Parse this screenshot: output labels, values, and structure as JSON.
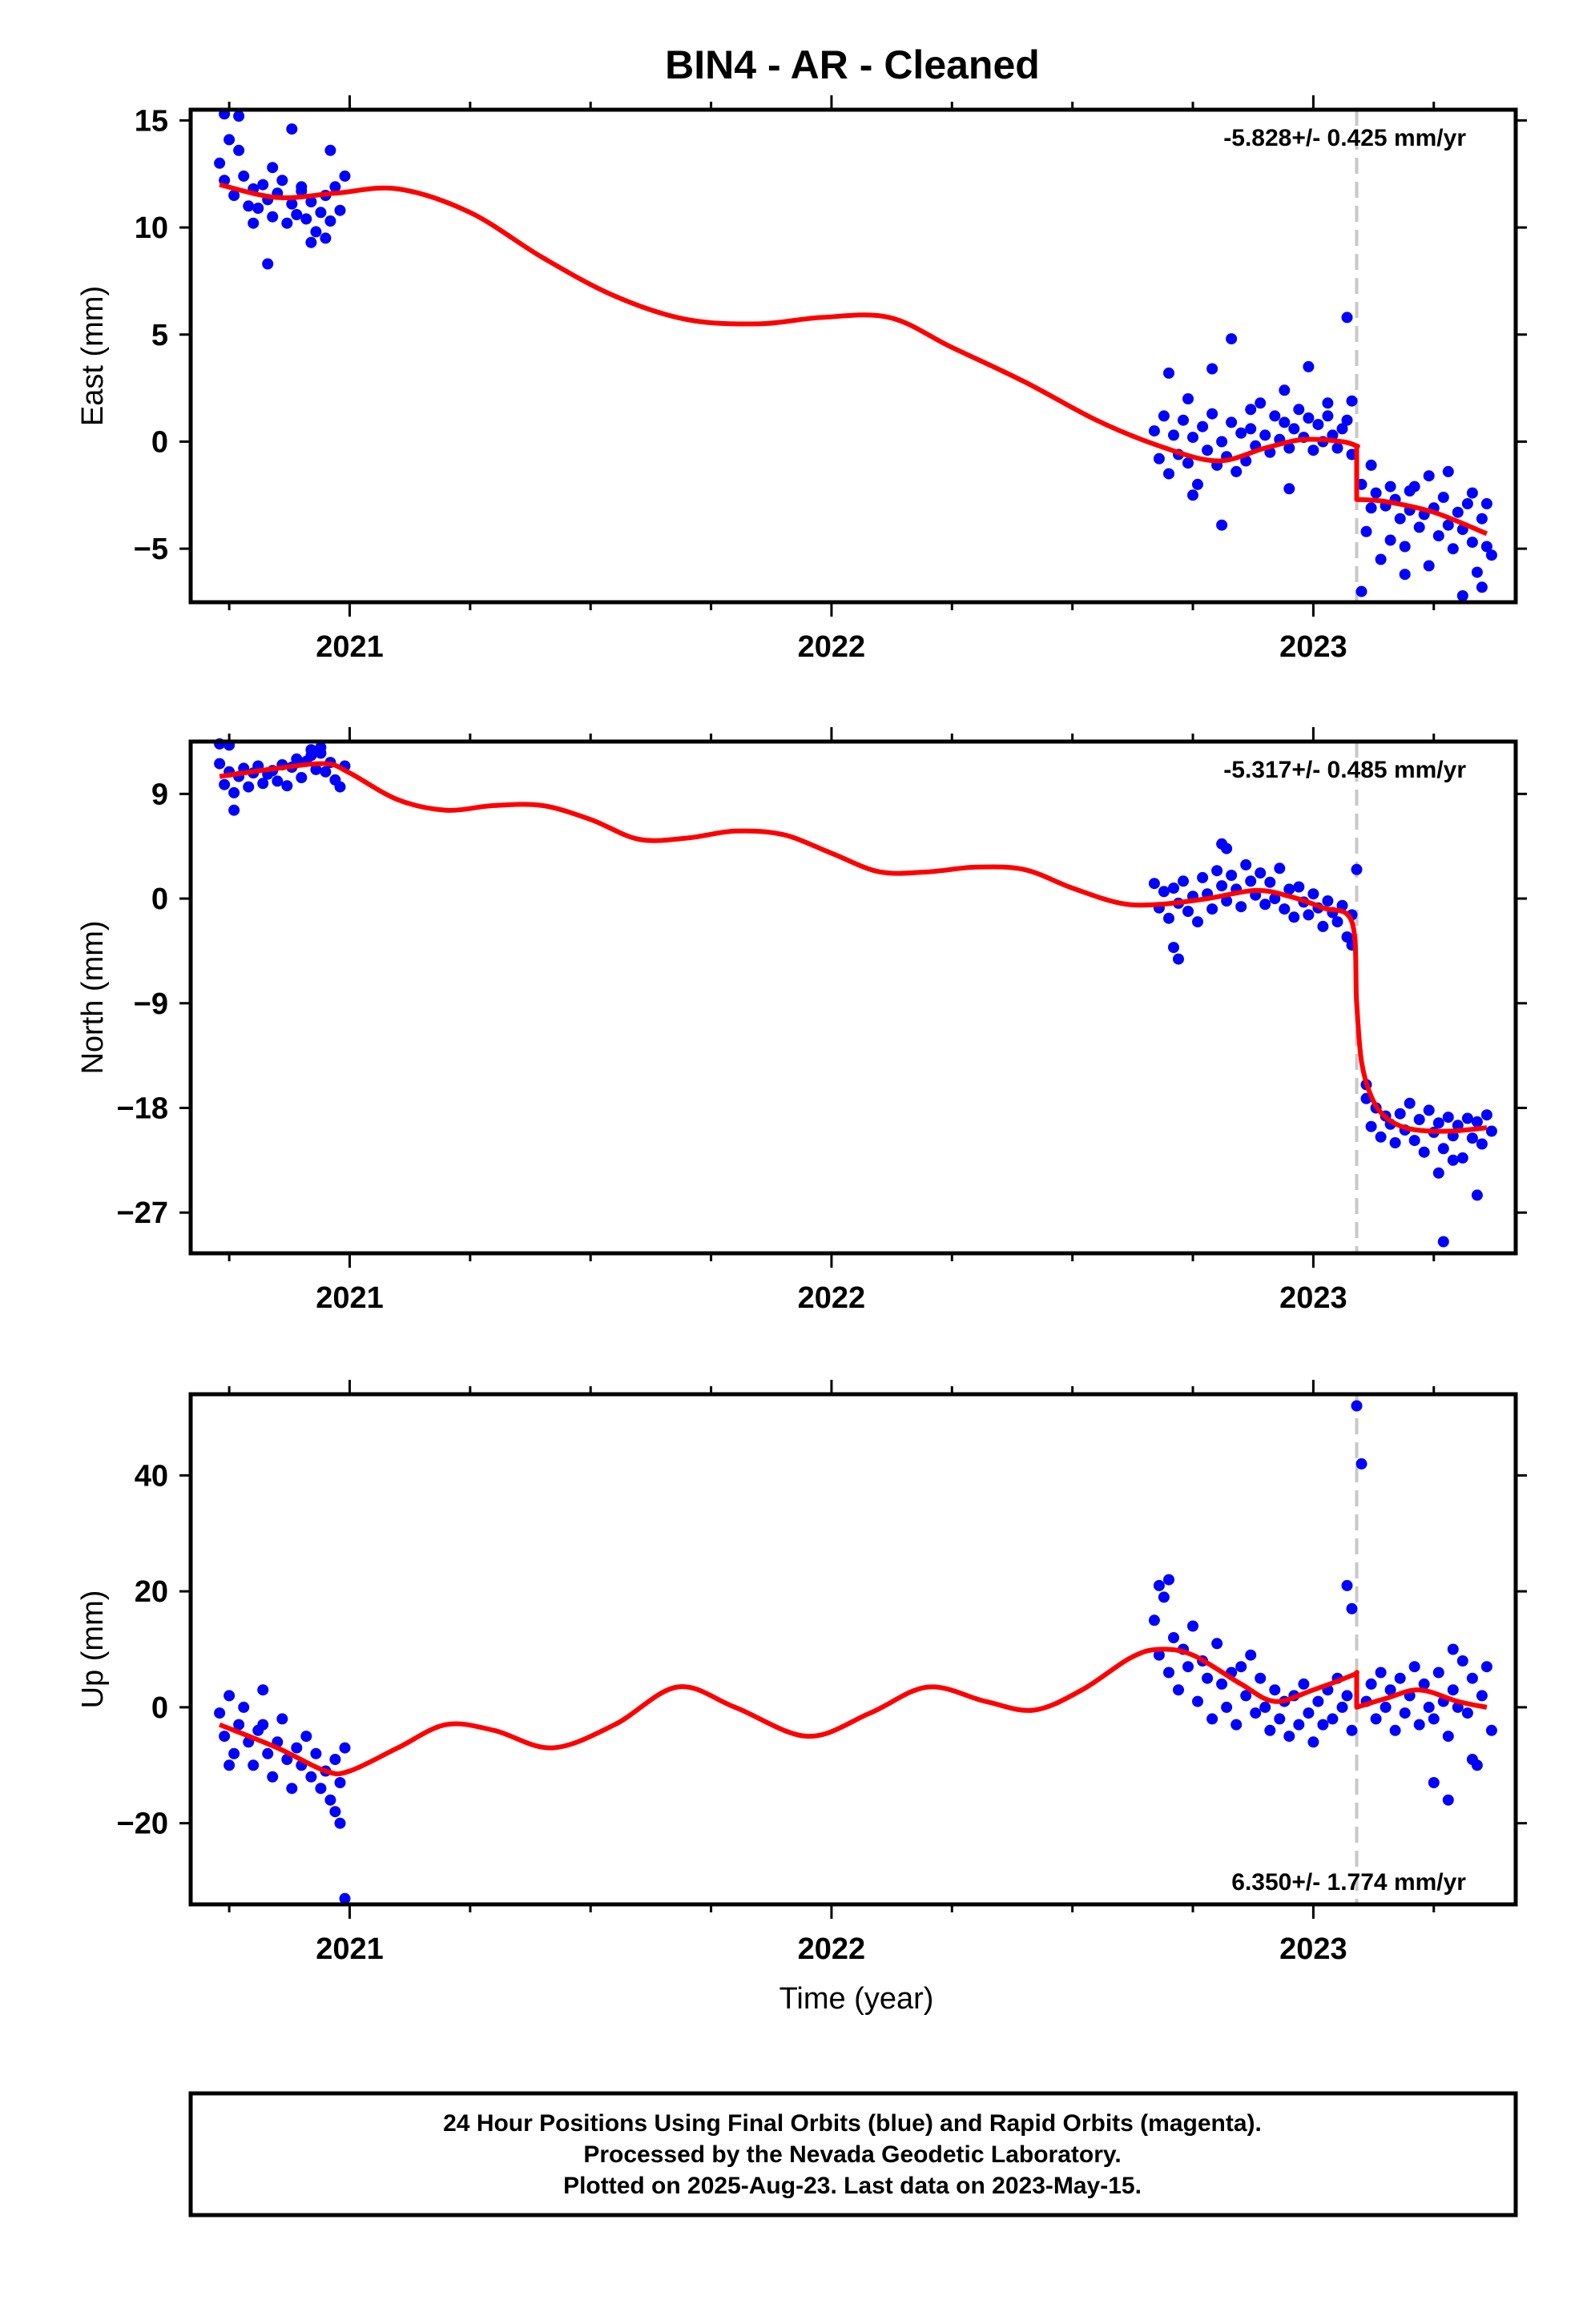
{
  "page": {
    "title": "BIN4  - AR - Cleaned"
  },
  "chart_data": [
    {
      "type": "scatter",
      "ylabel": "East (mm)",
      "xlim": [
        2020.67,
        2023.42
      ],
      "ylim": [
        -7.5,
        15.5
      ],
      "yticks": [
        -5,
        0,
        5,
        10,
        15
      ],
      "yticks_labels": [
        "−5",
        "0",
        "5",
        "10",
        "15"
      ],
      "xticks_labels": [
        "2021",
        "2022",
        "2023"
      ],
      "xticks": [
        2021,
        2022,
        2023
      ],
      "rate_label": "-5.828+/- 0.425 mm/yr",
      "rate_position": "top-right",
      "event_line_x": 2023.09,
      "model": {
        "name": "model fit",
        "color": "#ff0000",
        "x": [
          2020.73,
          2020.85,
          2020.97,
          2021.1,
          2021.25,
          2021.4,
          2021.55,
          2021.7,
          2021.85,
          2021.98,
          2022.12,
          2022.25,
          2022.4,
          2022.55,
          2022.68,
          2022.8,
          2022.9,
          2022.98,
          2023.06,
          2023.09,
          2023.09,
          2023.15,
          2023.25,
          2023.36
        ],
        "y": [
          12.0,
          11.4,
          11.6,
          11.8,
          10.7,
          8.6,
          6.8,
          5.7,
          5.5,
          5.8,
          5.8,
          4.4,
          2.8,
          1.0,
          -0.2,
          -0.9,
          -0.3,
          0.1,
          0.0,
          -0.2,
          -2.7,
          -2.8,
          -3.3,
          -4.3
        ]
      },
      "series": [
        {
          "name": "daily positions",
          "color": "#0000ff",
          "x": [
            2020.73,
            2020.74,
            2020.75,
            2020.76,
            2020.77,
            2020.78,
            2020.79,
            2020.8,
            2020.81,
            2020.82,
            2020.83,
            2020.84,
            2020.85,
            2020.86,
            2020.87,
            2020.88,
            2020.89,
            2020.9,
            2020.91,
            2020.92,
            2020.93,
            2020.94,
            2020.95,
            2020.96,
            2020.97,
            2020.98,
            2020.99,
            2020.74,
            2020.77,
            2020.8,
            2020.83,
            2020.88,
            2020.92,
            2020.95,
            2020.84,
            2020.9,
            2020.96,
            2022.67,
            2022.68,
            2022.69,
            2022.7,
            2022.71,
            2022.72,
            2022.73,
            2022.74,
            2022.75,
            2022.76,
            2022.77,
            2022.78,
            2022.79,
            2022.8,
            2022.81,
            2022.82,
            2022.83,
            2022.84,
            2022.85,
            2022.86,
            2022.87,
            2022.88,
            2022.89,
            2022.9,
            2022.91,
            2022.92,
            2022.93,
            2022.94,
            2022.95,
            2022.96,
            2022.97,
            2022.98,
            2022.99,
            2023.0,
            2023.01,
            2023.02,
            2023.03,
            2023.04,
            2023.05,
            2023.06,
            2023.07,
            2023.08,
            2022.7,
            2022.74,
            2022.79,
            2022.83,
            2022.87,
            2022.94,
            2022.99,
            2023.03,
            2023.07,
            2022.81,
            2022.95,
            2023.08,
            2022.75,
            2023.1,
            2023.11,
            2023.12,
            2023.13,
            2023.14,
            2023.15,
            2023.16,
            2023.17,
            2023.18,
            2023.19,
            2023.2,
            2023.21,
            2023.22,
            2023.23,
            2023.24,
            2023.25,
            2023.26,
            2023.27,
            2023.28,
            2023.29,
            2023.3,
            2023.31,
            2023.32,
            2023.33,
            2023.34,
            2023.35,
            2023.36,
            2023.37,
            2023.12,
            2023.16,
            2023.2,
            2023.24,
            2023.28,
            2023.33,
            2023.36,
            2023.1,
            2023.19,
            2023.31,
            2023.35
          ],
          "y": [
            13.0,
            12.2,
            14.1,
            11.5,
            13.6,
            12.4,
            11.0,
            11.8,
            10.9,
            12.0,
            11.3,
            10.5,
            11.6,
            12.2,
            10.2,
            11.1,
            10.6,
            11.9,
            10.4,
            11.2,
            9.8,
            10.7,
            11.5,
            10.3,
            11.9,
            10.8,
            12.4,
            15.3,
            15.2,
            10.2,
            8.3,
            14.6,
            9.3,
            9.5,
            12.8,
            11.7,
            13.6,
            0.5,
            -0.8,
            1.2,
            -1.5,
            0.3,
            -0.6,
            1.0,
            -1.0,
            0.2,
            -2.0,
            0.7,
            -0.4,
            1.3,
            -1.1,
            0.0,
            -0.7,
            0.9,
            -1.4,
            0.4,
            -0.9,
            0.6,
            -0.2,
            1.8,
            0.3,
            -0.5,
            1.2,
            0.1,
            0.9,
            -0.3,
            0.6,
            1.5,
            0.2,
            1.1,
            -0.4,
            0.8,
            0.0,
            1.2,
            0.3,
            -0.3,
            0.6,
            1.0,
            -0.6,
            3.2,
            2.0,
            3.4,
            4.8,
            1.5,
            2.4,
            3.5,
            1.8,
            5.8,
            -3.9,
            -2.2,
            1.9,
            -2.5,
            -2.0,
            -4.2,
            -3.1,
            -2.4,
            -5.5,
            -3.0,
            -4.6,
            -2.7,
            -3.6,
            -4.9,
            -3.2,
            -2.1,
            -4.0,
            -3.4,
            -5.8,
            -3.1,
            -4.4,
            -2.6,
            -3.9,
            -5.0,
            -3.3,
            -4.1,
            -2.9,
            -4.7,
            -6.1,
            -3.6,
            -4.9,
            -5.3,
            -1.1,
            -2.1,
            -2.3,
            -1.6,
            -1.4,
            -2.4,
            -2.9,
            -7.0,
            -6.2,
            -7.2,
            -6.8
          ]
        }
      ]
    },
    {
      "type": "scatter",
      "ylabel": "North (mm)",
      "xlim": [
        2020.67,
        2023.42
      ],
      "ylim": [
        -30.5,
        13.5
      ],
      "yticks": [
        -27,
        -18,
        -9,
        0,
        9
      ],
      "yticks_labels": [
        "−27",
        "−18",
        "−9",
        "0",
        "9"
      ],
      "xticks_labels": [
        "2021",
        "2022",
        "2023"
      ],
      "xticks": [
        2021,
        2022,
        2023
      ],
      "rate_label": "-5.317+/- 0.485 mm/yr",
      "rate_position": "top-right",
      "event_line_x": 2023.09,
      "model": {
        "name": "model fit",
        "color": "#ff0000",
        "x": [
          2020.73,
          2020.85,
          2020.95,
          2021.0,
          2021.1,
          2021.2,
          2021.3,
          2021.4,
          2021.5,
          2021.6,
          2021.7,
          2021.8,
          2021.9,
          2022.0,
          2022.1,
          2022.2,
          2022.3,
          2022.4,
          2022.5,
          2022.6,
          2022.68,
          2022.78,
          2022.88,
          2022.95,
          2023.02,
          2023.08,
          2023.09,
          2023.1,
          2023.12,
          2023.15,
          2023.2,
          2023.28,
          2023.36
        ],
        "y": [
          10.5,
          11.2,
          11.6,
          10.8,
          8.5,
          7.6,
          8.0,
          8.0,
          6.8,
          5.1,
          5.2,
          5.8,
          5.5,
          3.9,
          2.3,
          2.3,
          2.7,
          2.5,
          0.9,
          -0.4,
          -0.5,
          0.0,
          0.7,
          0.2,
          -0.8,
          -2.0,
          -9.0,
          -14.0,
          -17.0,
          -18.8,
          -19.8,
          -20.0,
          -19.7
        ]
      },
      "series": [
        {
          "name": "daily positions",
          "color": "#0000ff",
          "x": [
            2020.73,
            2020.74,
            2020.75,
            2020.76,
            2020.77,
            2020.78,
            2020.79,
            2020.8,
            2020.81,
            2020.82,
            2020.83,
            2020.84,
            2020.85,
            2020.86,
            2020.87,
            2020.88,
            2020.89,
            2020.9,
            2020.91,
            2020.92,
            2020.93,
            2020.94,
            2020.95,
            2020.96,
            2020.97,
            2020.98,
            2020.99,
            2020.73,
            2020.76,
            2020.75,
            2020.92,
            2020.94,
            2022.67,
            2022.68,
            2022.69,
            2022.7,
            2022.71,
            2022.72,
            2022.73,
            2022.74,
            2022.75,
            2022.76,
            2022.77,
            2022.78,
            2022.79,
            2022.8,
            2022.81,
            2022.82,
            2022.83,
            2022.84,
            2022.85,
            2022.86,
            2022.87,
            2022.88,
            2022.89,
            2022.9,
            2022.91,
            2022.92,
            2022.93,
            2022.94,
            2022.95,
            2022.96,
            2022.97,
            2022.98,
            2022.99,
            2023.0,
            2023.01,
            2023.02,
            2023.03,
            2023.04,
            2023.05,
            2023.06,
            2023.07,
            2023.08,
            2022.71,
            2022.72,
            2022.81,
            2022.82,
            2023.08,
            2023.09,
            2023.11,
            2023.12,
            2023.13,
            2023.14,
            2023.15,
            2023.16,
            2023.17,
            2023.18,
            2023.19,
            2023.2,
            2023.21,
            2023.22,
            2023.23,
            2023.24,
            2023.25,
            2023.26,
            2023.27,
            2023.28,
            2023.29,
            2023.3,
            2023.31,
            2023.32,
            2023.33,
            2023.34,
            2023.35,
            2023.36,
            2023.37,
            2023.26,
            2023.29,
            2023.34,
            2023.11
          ],
          "y": [
            11.6,
            9.8,
            10.9,
            9.1,
            10.5,
            11.2,
            9.6,
            10.8,
            11.4,
            9.9,
            10.7,
            11.0,
            10.1,
            11.5,
            9.7,
            11.3,
            12.0,
            10.4,
            11.8,
            12.3,
            11.1,
            12.5,
            10.9,
            11.7,
            10.2,
            9.6,
            11.4,
            13.3,
            7.6,
            13.2,
            12.8,
            13.0,
            1.3,
            -0.8,
            0.6,
            -1.7,
            0.9,
            -0.4,
            1.5,
            -1.1,
            0.2,
            -2.0,
            1.8,
            0.4,
            -0.9,
            2.4,
            1.1,
            -0.2,
            2.0,
            0.8,
            -0.7,
            2.9,
            1.5,
            0.3,
            2.2,
            -0.5,
            1.4,
            0.0,
            2.6,
            -0.9,
            0.8,
            -1.6,
            1.0,
            -0.3,
            -1.4,
            0.4,
            -0.8,
            -2.4,
            -0.2,
            -1.2,
            -2.0,
            -0.6,
            -3.3,
            -1.4,
            -4.2,
            -5.2,
            4.7,
            4.3,
            -4.0,
            2.5,
            -17.2,
            -19.6,
            -18.0,
            -20.5,
            -18.7,
            -19.4,
            -21.0,
            -18.5,
            -19.9,
            -17.6,
            -20.8,
            -19.0,
            -21.8,
            -18.2,
            -20.1,
            -19.3,
            -21.5,
            -18.8,
            -20.4,
            -19.5,
            -22.3,
            -18.9,
            -20.6,
            -19.2,
            -21.1,
            -18.6,
            -20.0,
            -23.6,
            -22.5,
            -25.5,
            -16.0
          ],
          "extra_outlier": {
            "x": 2023.27,
            "y": -29.5
          }
        }
      ]
    },
    {
      "type": "scatter",
      "ylabel": "Up (mm)",
      "xlabel": "Time (year)",
      "xlim": [
        2020.67,
        2023.42
      ],
      "ylim": [
        -34,
        54
      ],
      "yticks": [
        -20,
        0,
        20,
        40
      ],
      "yticks_labels": [
        "−20",
        "0",
        "20",
        "40"
      ],
      "xticks_labels": [
        "2021",
        "2022",
        "2023"
      ],
      "xticks": [
        2021,
        2022,
        2023
      ],
      "rate_label": "6.350+/- 1.774 mm/yr",
      "rate_position": "bottom-right",
      "event_line_x": 2023.09,
      "model": {
        "name": "model fit",
        "color": "#ff0000",
        "x": [
          2020.73,
          2020.85,
          2020.95,
          2021.0,
          2021.1,
          2021.2,
          2021.3,
          2021.42,
          2021.55,
          2021.68,
          2021.8,
          2021.95,
          2022.08,
          2022.2,
          2022.32,
          2022.42,
          2022.52,
          2022.62,
          2022.68,
          2022.75,
          2022.85,
          2022.92,
          2023.0,
          2023.08,
          2023.09,
          2023.09,
          2023.15,
          2023.22,
          2023.3,
          2023.36
        ],
        "y": [
          -3,
          -7,
          -11,
          -11,
          -7,
          -3,
          -4,
          -7,
          -3,
          3.5,
          0,
          -5,
          -1,
          3.5,
          1,
          -0.5,
          3,
          8.5,
          10,
          9,
          4,
          1,
          3,
          5.5,
          6,
          0,
          1.5,
          3,
          1,
          0
        ]
      },
      "series": [
        {
          "name": "daily positions",
          "color": "#0000ff",
          "x": [
            2020.73,
            2020.74,
            2020.75,
            2020.76,
            2020.77,
            2020.78,
            2020.79,
            2020.8,
            2020.81,
            2020.82,
            2020.83,
            2020.84,
            2020.85,
            2020.86,
            2020.87,
            2020.88,
            2020.89,
            2020.9,
            2020.91,
            2020.92,
            2020.93,
            2020.94,
            2020.95,
            2020.96,
            2020.97,
            2020.98,
            2020.99,
            2020.75,
            2020.82,
            2020.97,
            2020.98,
            2020.99,
            2022.67,
            2022.68,
            2022.69,
            2022.7,
            2022.71,
            2022.72,
            2022.73,
            2022.74,
            2022.75,
            2022.76,
            2022.77,
            2022.78,
            2022.79,
            2022.8,
            2022.81,
            2022.82,
            2022.83,
            2022.84,
            2022.85,
            2022.86,
            2022.87,
            2022.88,
            2022.89,
            2022.9,
            2022.91,
            2022.92,
            2022.93,
            2022.94,
            2022.95,
            2022.96,
            2022.97,
            2022.98,
            2022.99,
            2023.0,
            2023.01,
            2023.02,
            2023.03,
            2023.04,
            2023.05,
            2023.06,
            2023.07,
            2023.08,
            2022.68,
            2022.7,
            2023.07,
            2023.08,
            2023.09,
            2023.1,
            2023.11,
            2023.12,
            2023.13,
            2023.14,
            2023.15,
            2023.16,
            2023.17,
            2023.18,
            2023.19,
            2023.2,
            2023.21,
            2023.22,
            2023.23,
            2023.24,
            2023.25,
            2023.26,
            2023.27,
            2023.28,
            2023.29,
            2023.3,
            2023.31,
            2023.32,
            2023.33,
            2023.34,
            2023.35,
            2023.36,
            2023.37,
            2023.25,
            2023.29,
            2023.33,
            2023.28
          ],
          "y": [
            -1,
            -5,
            2,
            -8,
            -3,
            0,
            -6,
            -10,
            -4,
            3,
            -8,
            -12,
            -6,
            -2,
            -9,
            -14,
            -7,
            -10,
            -5,
            -12,
            -8,
            -14,
            -11,
            -16,
            -9,
            -13,
            -7,
            -10,
            -3,
            -18,
            -20,
            -33,
            15,
            9,
            19,
            6,
            12,
            3,
            10,
            7,
            14,
            1,
            8,
            5,
            -2,
            11,
            4,
            0,
            6,
            -3,
            7,
            2,
            9,
            -1,
            5,
            0,
            -4,
            3,
            -2,
            1,
            -5,
            2,
            -3,
            4,
            -1,
            -6,
            1,
            -3,
            3,
            -2,
            5,
            0,
            2,
            -4,
            21,
            22,
            21,
            17,
            52,
            42,
            1,
            4,
            -2,
            6,
            0,
            3,
            -4,
            5,
            -1,
            2,
            7,
            -3,
            4,
            0,
            -2,
            6,
            1,
            -5,
            3,
            0,
            8,
            -1,
            5,
            -10,
            2,
            7,
            -4,
            -13,
            10,
            -9,
            -16
          ]
        }
      ]
    }
  ],
  "footer": {
    "line1": "24 Hour Positions Using Final Orbits (blue) and Rapid Orbits (magenta).",
    "line2": "Processed by the Nevada Geodetic Laboratory.",
    "line3": "Plotted on 2025-Aug-23. Last data on 2023-May-15."
  }
}
